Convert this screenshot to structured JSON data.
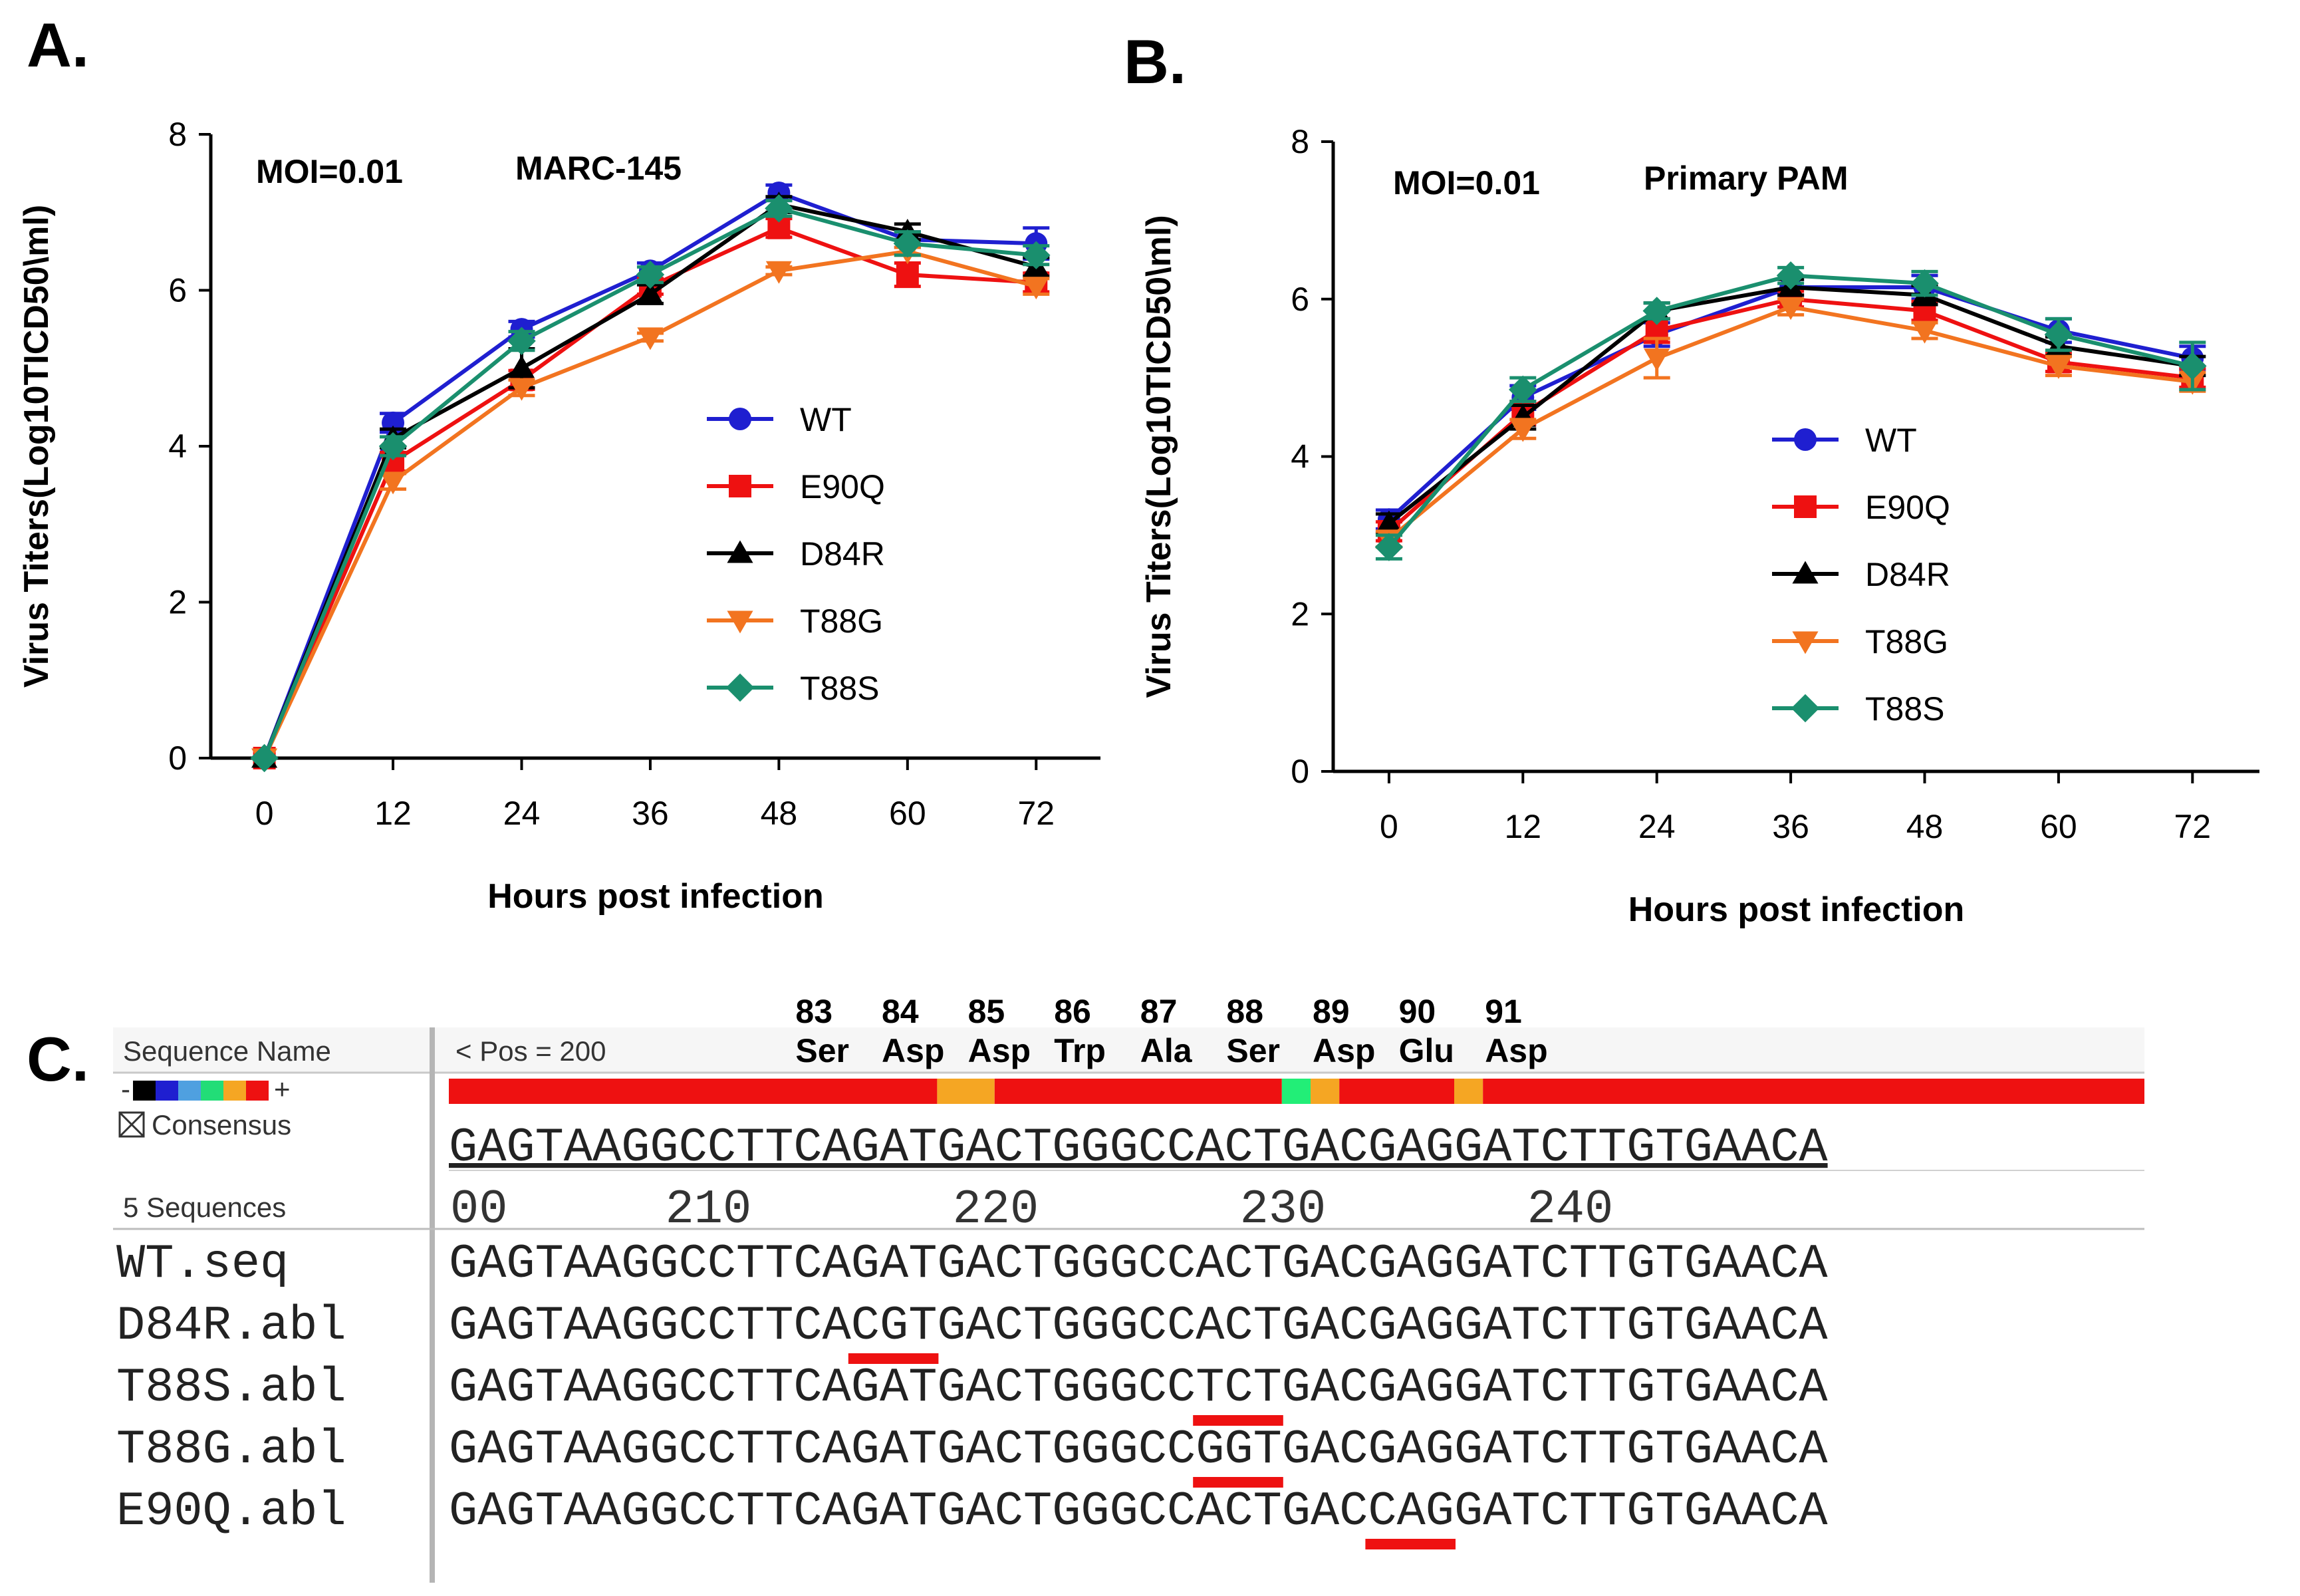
{
  "panel_labels": {
    "a": "A.",
    "b": "B.",
    "c": "C."
  },
  "chart_data": [
    {
      "type": "line",
      "panel": "A.",
      "xlabel": "Hours post infection",
      "ylabel": "Virus Titers(Log10TICD50\\ml)",
      "annotations": [
        "MOI=0.01",
        "MARC-145"
      ],
      "x": [
        0,
        12,
        24,
        36,
        48,
        60,
        72
      ],
      "x_ticks": [
        0,
        12,
        24,
        36,
        48,
        60,
        72
      ],
      "y_ticks": [
        0,
        2,
        4,
        6,
        8
      ],
      "xlim": [
        -5,
        78
      ],
      "ylim": [
        0,
        8
      ],
      "legend_position": "center-right",
      "series": [
        {
          "name": "WT",
          "color": "#1f1fd0",
          "marker": "circle",
          "values": [
            0,
            4.3,
            5.5,
            6.25,
            7.25,
            6.65,
            6.6
          ],
          "err": [
            0,
            0.12,
            0.1,
            0.1,
            0.1,
            0.1,
            0.2
          ]
        },
        {
          "name": "E90Q",
          "color": "#ee1111",
          "marker": "square",
          "values": [
            0,
            3.8,
            4.85,
            6.05,
            6.8,
            6.2,
            6.1
          ],
          "err": [
            0,
            0.12,
            0.12,
            0.1,
            0.12,
            0.15,
            0.12
          ]
        },
        {
          "name": "D84R",
          "color": "#000000",
          "marker": "triangle",
          "values": [
            0,
            4.1,
            5.0,
            5.95,
            7.1,
            6.75,
            6.3
          ],
          "err": [
            0,
            0.12,
            0.25,
            0.12,
            0.1,
            0.1,
            0.12
          ]
        },
        {
          "name": "T88G",
          "color": "#f27420",
          "marker": "invtri",
          "values": [
            0,
            3.55,
            4.75,
            5.4,
            6.25,
            6.5,
            6.05
          ],
          "err": [
            0,
            0.1,
            0.1,
            0.05,
            0.05,
            0.05,
            0.1
          ]
        },
        {
          "name": "T88S",
          "color": "#1a8f6e",
          "marker": "diamond",
          "values": [
            0,
            4.0,
            5.35,
            6.2,
            7.05,
            6.6,
            6.45
          ],
          "err": [
            0,
            0.12,
            0.12,
            0.1,
            0.1,
            0.15,
            0.12
          ]
        }
      ]
    },
    {
      "type": "line",
      "panel": "B.",
      "xlabel": "Hours post infection",
      "ylabel": "Virus Titers(Log10TICD50\\ml)",
      "annotations": [
        "MOI=0.01",
        "Primary PAM"
      ],
      "x": [
        0,
        12,
        24,
        36,
        48,
        60,
        72
      ],
      "x_ticks": [
        0,
        12,
        24,
        36,
        48,
        60,
        72
      ],
      "y_ticks": [
        0,
        2,
        4,
        6,
        8
      ],
      "xlim": [
        -5,
        78
      ],
      "ylim": [
        0,
        8
      ],
      "legend_position": "center-right",
      "series": [
        {
          "name": "WT",
          "color": "#1f1fd0",
          "marker": "circle",
          "values": [
            3.2,
            4.75,
            5.55,
            6.15,
            6.15,
            5.6,
            5.25
          ],
          "err": [
            0.12,
            0.15,
            0.15,
            0.1,
            0.15,
            0.15,
            0.15
          ]
        },
        {
          "name": "E90Q",
          "color": "#ee1111",
          "marker": "square",
          "values": [
            3.05,
            4.55,
            5.6,
            6.0,
            5.85,
            5.2,
            5.0
          ],
          "err": [
            0.12,
            0.15,
            0.15,
            0.1,
            0.12,
            0.12,
            0.12
          ]
        },
        {
          "name": "D84R",
          "color": "#000000",
          "marker": "triangle",
          "values": [
            3.15,
            4.5,
            5.85,
            6.15,
            6.05,
            5.4,
            5.15
          ],
          "err": [
            0.12,
            0.15,
            0.1,
            0.1,
            0.12,
            0.12,
            0.12
          ]
        },
        {
          "name": "T88G",
          "color": "#f27420",
          "marker": "invtri",
          "values": [
            2.95,
            4.35,
            5.25,
            5.9,
            5.6,
            5.15,
            4.95
          ],
          "err": [
            0.1,
            0.12,
            0.25,
            0.1,
            0.1,
            0.12,
            0.12
          ]
        },
        {
          "name": "T88S",
          "color": "#1a8f6e",
          "marker": "diamond",
          "values": [
            2.85,
            4.85,
            5.85,
            6.3,
            6.2,
            5.55,
            5.15
          ],
          "err": [
            0.15,
            0.15,
            0.1,
            0.1,
            0.15,
            0.2,
            0.3
          ]
        }
      ]
    }
  ],
  "alignment": {
    "sequence_name_header": "Sequence Name",
    "pos_label": "< Pos = 200",
    "consensus_label": "Consensus",
    "count_label": "5 Sequences",
    "codons": [
      {
        "num": "83",
        "aa": "Ser"
      },
      {
        "num": "84",
        "aa": "Asp"
      },
      {
        "num": "85",
        "aa": "Asp"
      },
      {
        "num": "86",
        "aa": "Trp"
      },
      {
        "num": "87",
        "aa": "Ala"
      },
      {
        "num": "88",
        "aa": "Ser"
      },
      {
        "num": "89",
        "aa": "Asp"
      },
      {
        "num": "90",
        "aa": "Glu"
      },
      {
        "num": "91",
        "aa": "Asp"
      }
    ],
    "consensus": "GAGTAAGGCCTTCAGATGACTGGGCCACTGACGAGGATCTTGTGAACA",
    "ruler": [
      "00",
      "210",
      "220",
      "230",
      "240"
    ],
    "color_key": [
      "#000000",
      "#1f1fd0",
      "#4fa0e0",
      "#22dd77",
      "#f5a623",
      "#ee1111"
    ],
    "coverage_colors": {
      "red": "#ee1111",
      "orange": "#f5a623",
      "green": "#22ee77"
    },
    "underline_color": "#ee1111",
    "sequences": [
      {
        "name": "WT.seq",
        "seq": "GAGTAAGGCCTTCAGATGACTGGGCCACTGACGAGGATCTTGTGAACA"
      },
      {
        "name": "D84R.abl",
        "seq": "GAGTAAGGCCTTCACGTGACTGGGCCACTGACGAGGATCTTGTGAACA"
      },
      {
        "name": "T88S.abl",
        "seq": "GAGTAAGGCCTTCAGATGACTGGGCCTCTGACGAGGATCTTGTGAACA"
      },
      {
        "name": "T88G.abl",
        "seq": "GAGTAAGGCCTTCAGATGACTGGGCCGGTGACGAGGATCTTGTGAACA"
      },
      {
        "name": "E90Q.abl",
        "seq": "GAGTAAGGCCTTCAGATGACTGGGCCACTGACCAGGATCTTGTGAACA"
      }
    ]
  }
}
